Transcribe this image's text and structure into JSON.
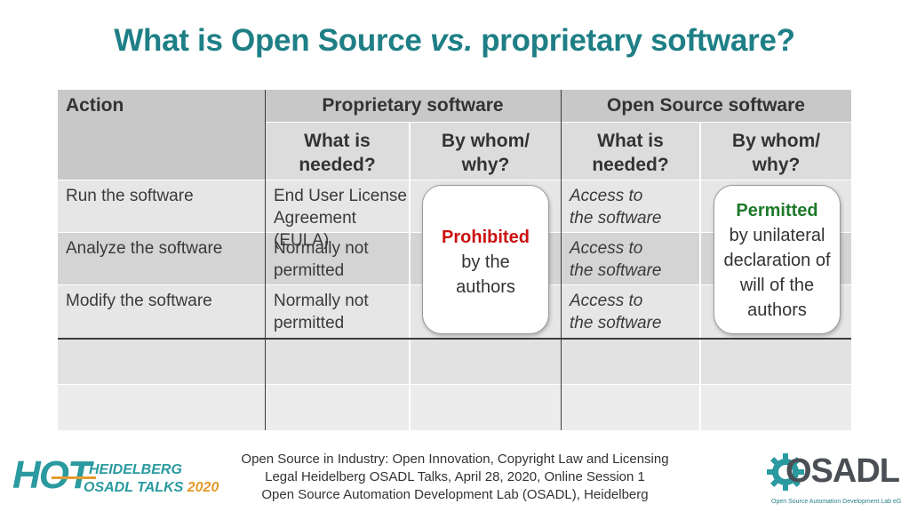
{
  "title": {
    "part1": "What is Open Source ",
    "part2": "vs.",
    "part3": " proprietary software?"
  },
  "table": {
    "header_action": "Action",
    "header_proprietary": "Proprietary software",
    "header_opensource": "Open Source software",
    "sub_what": "What is needed?",
    "sub_bywhom": "By whom/ why?",
    "rows": [
      {
        "action": "Run the software",
        "prop_needed": "End User License Agreement (EULA)",
        "os_needed": "Access to the software"
      },
      {
        "action": "Analyze the software",
        "prop_needed": "Normally not permitted",
        "os_needed": "Access to the software"
      },
      {
        "action": "Modify the software",
        "prop_needed": "Normally not permitted",
        "os_needed": "Access to the software"
      }
    ],
    "prop_box": {
      "headline": "Prohibited",
      "text": "by the authors",
      "color": "#cc1111"
    },
    "os_box": {
      "headline": "Permitted",
      "text": "by unilateral declaration of will of the authors",
      "color": "#1e7a2a"
    }
  },
  "footer": {
    "line1": "Open Source in Industry: Open Innovation, Copyright Law and Licensing",
    "line2": "Legal Heidelberg OSADL Talks, April 28, 2020, Online Session 1",
    "line3": "Open Source Automation Development Lab (OSADL), Heidelberg"
  },
  "logos": {
    "hot_big": "HOT",
    "hot_line1": "HEIDELBERG",
    "hot_line2a": "OSADL TALKS",
    "hot_line2b": "2020",
    "osadl_name": "OSADL",
    "osadl_sub": "Open Source Automation Development Lab eG"
  },
  "colors": {
    "title": "#1f7f86",
    "hot_teal": "#2a9aa0",
    "hot_orange": "#e69a2e",
    "osadl_grey": "#4a4f55",
    "osadl_teal": "#2a9aa0"
  }
}
